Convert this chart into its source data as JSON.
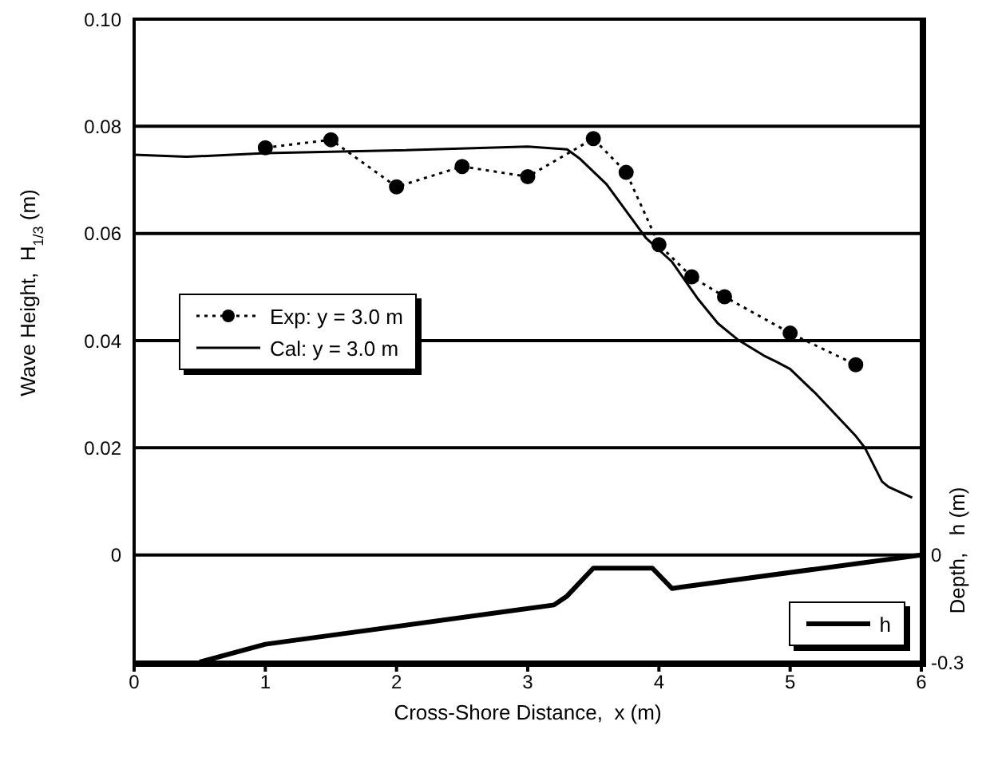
{
  "chart_data": {
    "type": "line",
    "xlabel": "Cross-Shore Distance,  x (m)",
    "ylabel": "Wave Height,  H$_{1/3}$ (m)",
    "y2label": "Depth,   h (m)",
    "xlim": [
      0,
      6
    ],
    "xticks": [
      0,
      1,
      2,
      3,
      4,
      5,
      6
    ],
    "ylim": [
      -0.02,
      0.1
    ],
    "yticks": [
      {
        "value": 0,
        "label": "0"
      },
      {
        "value": 0.02,
        "label": "0.02"
      },
      {
        "value": 0.04,
        "label": "0.04"
      },
      {
        "value": 0.06,
        "label": "0.06"
      },
      {
        "value": 0.08,
        "label": "0.08"
      },
      {
        "value": 0.1,
        "label": "0.10"
      }
    ],
    "y2lim": [
      -0.3,
      1.5
    ],
    "y2ticks": [
      0,
      -0.3
    ],
    "grid": "y",
    "legend": "left",
    "series": [
      {
        "name": "Exp: y = 3.0 m",
        "color": "#000000",
        "marker": "circle",
        "line_style": "dotted",
        "x": [
          1,
          1.5,
          2,
          2.5,
          3,
          3.5,
          3.75,
          4,
          4.25,
          4.5,
          5,
          5.5
        ],
        "values": [
          0.076,
          0.0775,
          0.0687,
          0.0725,
          0.0706,
          0.0777,
          0.0714,
          0.0579,
          0.0519,
          0.0482,
          0.0414,
          0.0355
        ]
      },
      {
        "name": "Cal: y = 3.0 m",
        "color": "#000000",
        "marker": "none",
        "line_style": "solid",
        "x": [
          0,
          0.4,
          1,
          2,
          3,
          3.3,
          3.4,
          3.6,
          3.9,
          4.1,
          4.3,
          4.45,
          4.6,
          4.8,
          4.9,
          5.0,
          5.2,
          5.5,
          5.57,
          5.7,
          5.75,
          5.93
        ],
        "values": [
          0.0747,
          0.0743,
          0.075,
          0.0755,
          0.0762,
          0.0757,
          0.0739,
          0.0692,
          0.0592,
          0.0547,
          0.0477,
          0.0432,
          0.0402,
          0.0372,
          0.036,
          0.0347,
          0.03,
          0.0222,
          0.02,
          0.0137,
          0.0127,
          0.0107
        ]
      },
      {
        "name": "h",
        "color": "#000000",
        "marker": "none",
        "line_style": "solid",
        "axis": "y2",
        "x": [
          0.5,
          1.0,
          3.2,
          3.3,
          3.5,
          3.95,
          4.1,
          4.17,
          6.0
        ],
        "values": [
          -0.3,
          -0.25,
          -0.14,
          -0.115,
          -0.037,
          -0.037,
          -0.094,
          -0.09,
          0
        ]
      }
    ]
  }
}
